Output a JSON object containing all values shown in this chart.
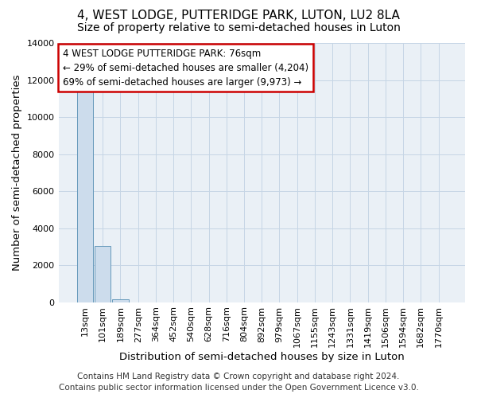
{
  "title": "4, WEST LODGE, PUTTERIDGE PARK, LUTON, LU2 8LA",
  "subtitle": "Size of property relative to semi-detached houses in Luton",
  "xlabel": "Distribution of semi-detached houses by size in Luton",
  "ylabel": "Number of semi-detached properties",
  "categories": [
    "13sqm",
    "101sqm",
    "189sqm",
    "277sqm",
    "364sqm",
    "452sqm",
    "540sqm",
    "628sqm",
    "716sqm",
    "804sqm",
    "892sqm",
    "979sqm",
    "1067sqm",
    "1155sqm",
    "1243sqm",
    "1331sqm",
    "1419sqm",
    "1506sqm",
    "1594sqm",
    "1682sqm",
    "1770sqm"
  ],
  "values": [
    11400,
    3050,
    150,
    0,
    0,
    0,
    0,
    0,
    0,
    0,
    0,
    0,
    0,
    0,
    0,
    0,
    0,
    0,
    0,
    0,
    0
  ],
  "bar_color": "#ccdcec",
  "bar_edge_color": "#6699bb",
  "ylim": [
    0,
    14000
  ],
  "yticks": [
    0,
    2000,
    4000,
    6000,
    8000,
    10000,
    12000,
    14000
  ],
  "annotation_line1": "4 WEST LODGE PUTTERIDGE PARK: 76sqm",
  "annotation_line2": "← 29% of semi-detached houses are smaller (4,204)",
  "annotation_line3": "69% of semi-detached houses are larger (9,973) →",
  "annotation_box_color": "#ffffff",
  "annotation_box_edge": "#cc0000",
  "footer_line1": "Contains HM Land Registry data © Crown copyright and database right 2024.",
  "footer_line2": "Contains public sector information licensed under the Open Government Licence v3.0.",
  "bg_color": "#eaf0f6",
  "grid_color": "#c5d5e5",
  "title_fontsize": 11,
  "subtitle_fontsize": 10,
  "axis_label_fontsize": 9.5,
  "tick_fontsize": 8,
  "annotation_fontsize": 8.5,
  "footer_fontsize": 7.5
}
